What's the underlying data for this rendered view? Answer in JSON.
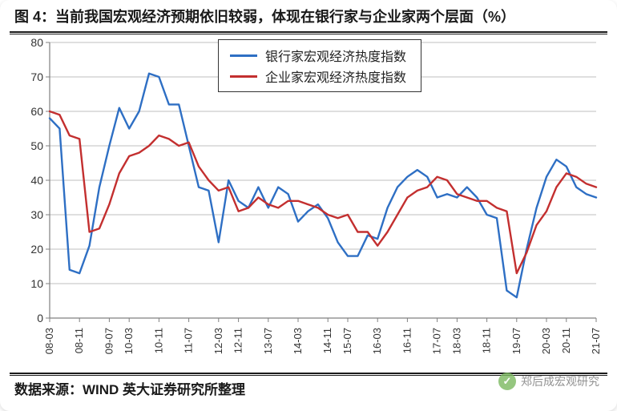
{
  "title": "图 4：当前我国宏观经济预期依旧较弱，体现在银行家与企业家两个层面（%）",
  "source": "数据来源：WIND  英大证券研究所整理",
  "watermark": "郑后成宏观研究",
  "chart": {
    "type": "line",
    "ylim": [
      0,
      80
    ],
    "ytick_step": 10,
    "background_color": "#ffffff",
    "grid_color": "#bfbfbf",
    "axis_color": "#808080",
    "line_width": 2.4,
    "x_labels": [
      "08-03",
      "08-11",
      "09-07",
      "10-03",
      "10-11",
      "11-07",
      "12-03",
      "12-11",
      "13-07",
      "14-03",
      "14-11",
      "15-07",
      "16-03",
      "16-11",
      "17-07",
      "18-03",
      "18-11",
      "19-07",
      "20-03",
      "20-11",
      "21-07"
    ],
    "legend": {
      "position": "top-center",
      "border_color": "#333333",
      "items": [
        {
          "label": "银行家宏观经济热度指数",
          "color": "#2e6fc4"
        },
        {
          "label": "企业家宏观经济热度指数",
          "color": "#c32f2f"
        }
      ]
    },
    "series": [
      {
        "name": "银行家宏观经济热度指数",
        "color": "#2e6fc4",
        "values": [
          58,
          55,
          14,
          13,
          21,
          38,
          50,
          61,
          55,
          60,
          71,
          70,
          62,
          62,
          50,
          38,
          37,
          22,
          40,
          34,
          32,
          38,
          32,
          38,
          36,
          28,
          31,
          33,
          29,
          22,
          18,
          18,
          24,
          23,
          32,
          38,
          41,
          43,
          41,
          35,
          36,
          35,
          38,
          35,
          30,
          29,
          8,
          6,
          20,
          32,
          41,
          46,
          44,
          38,
          36,
          35
        ]
      },
      {
        "name": "企业家宏观经济热度指数",
        "color": "#c32f2f",
        "values": [
          60,
          59,
          53,
          52,
          25,
          26,
          33,
          42,
          47,
          48,
          50,
          53,
          52,
          50,
          51,
          44,
          40,
          37,
          38,
          31,
          32,
          35,
          33,
          32,
          34,
          34,
          33,
          32,
          30,
          29,
          30,
          25,
          25,
          21,
          25,
          30,
          35,
          37,
          38,
          41,
          40,
          36,
          35,
          34,
          34,
          32,
          31,
          13,
          19,
          27,
          31,
          38,
          42,
          41,
          39,
          38
        ]
      }
    ]
  }
}
